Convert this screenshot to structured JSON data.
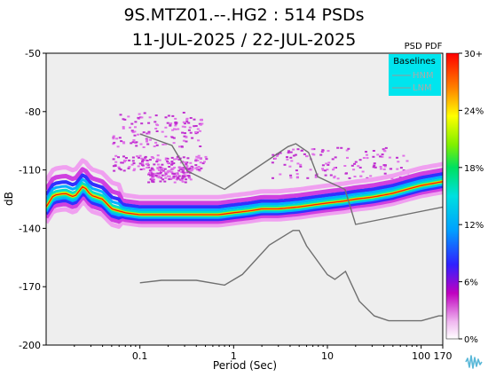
{
  "title_line1": "9S.MTZ01.--.HG2 : 514 PSDs",
  "title_line2": "11-JUL-2025 / 22-JUL-2025",
  "legend": {
    "title": "Baselines",
    "items": [
      {
        "label": "HNM",
        "color": "#aaaaaa"
      },
      {
        "label": "LNM",
        "color": "#aaaaaa"
      }
    ],
    "background": "#00e5ee"
  },
  "colorbar": {
    "title": "PSD PDF",
    "tick_labels": [
      "30+",
      "24%",
      "18%",
      "12%",
      "6%",
      "0%"
    ],
    "tick_values": [
      30,
      24,
      18,
      12,
      6,
      0
    ]
  },
  "chart_data": {
    "type": "heatmap",
    "title": "9S.MTZ01.--.HG2 : 514 PSDs",
    "subtitle": "11-JUL-2025 / 22-JUL-2025",
    "xlabel": "Period (Sec)",
    "ylabel": "dB",
    "x_scale": "log",
    "xlim": [
      0.01,
      170
    ],
    "ylim": [
      -200,
      -50
    ],
    "x_ticks": [
      0.1,
      1,
      10,
      100,
      170
    ],
    "x_tick_labels": [
      "0.1",
      "1",
      "10",
      "100",
      "170"
    ],
    "y_ticks": [
      -50,
      -80,
      -110,
      -140,
      -170,
      -200
    ],
    "y_tick_labels": [
      "-50",
      "-80",
      "-110",
      "-140",
      "-170",
      "-200"
    ],
    "plot_background": "#eeeeee",
    "mode_curve": {
      "x": [
        0.01,
        0.012,
        0.016,
        0.02,
        0.025,
        0.03,
        0.04,
        0.05,
        0.07,
        0.1,
        0.15,
        0.2,
        0.3,
        0.5,
        0.7,
        1,
        1.5,
        2,
        3,
        5,
        7,
        10,
        15,
        20,
        30,
        50,
        70,
        100,
        170
      ],
      "y": [
        -129,
        -123,
        -122,
        -124,
        -118,
        -123,
        -125,
        -130,
        -132,
        -133,
        -133,
        -133,
        -133,
        -133,
        -133,
        -132,
        -131,
        -130,
        -130,
        -129,
        -128,
        -127,
        -126,
        -125,
        -124,
        -122,
        -120,
        -118,
        -116
      ]
    },
    "scatter_bands": [
      {
        "x_range": [
          0.05,
          0.45
        ],
        "y_center": -89,
        "spread": 9
      },
      {
        "x_range": [
          0.05,
          0.5
        ],
        "y_center": -106,
        "spread": 4
      },
      {
        "x_range": [
          0.12,
          0.35
        ],
        "y_center": -112,
        "spread": 4
      },
      {
        "x_range": [
          2.5,
          70
        ],
        "y_center": -106,
        "spread": 8
      }
    ],
    "baselines": [
      {
        "name": "HNM",
        "x": [
          0.1,
          0.22,
          0.32,
          0.8,
          3.8,
          4.6,
          6.3,
          7.9,
          15.4,
          20,
          354.8
        ],
        "y": [
          -91.5,
          -97.4,
          -110.5,
          -120,
          -98,
          -96.5,
          -101,
          -113.5,
          -120,
          -138,
          -126
        ]
      },
      {
        "name": "LNM",
        "x": [
          0.1,
          0.17,
          0.4,
          0.8,
          1.24,
          2.4,
          4.3,
          5,
          6,
          10,
          12,
          15.6,
          21.9,
          31.6,
          45,
          70,
          101,
          154,
          328,
          600
        ],
        "y": [
          -168,
          -166.7,
          -166.7,
          -169.2,
          -163.7,
          -148.6,
          -141.1,
          -141.1,
          -149,
          -163.8,
          -166.2,
          -162.1,
          -177.5,
          -185,
          -187.5,
          -187.5,
          -187.5,
          -185,
          -185,
          -185
        ]
      }
    ],
    "colorbar_range": [
      0,
      30
    ],
    "colorbar_unit": "%"
  }
}
